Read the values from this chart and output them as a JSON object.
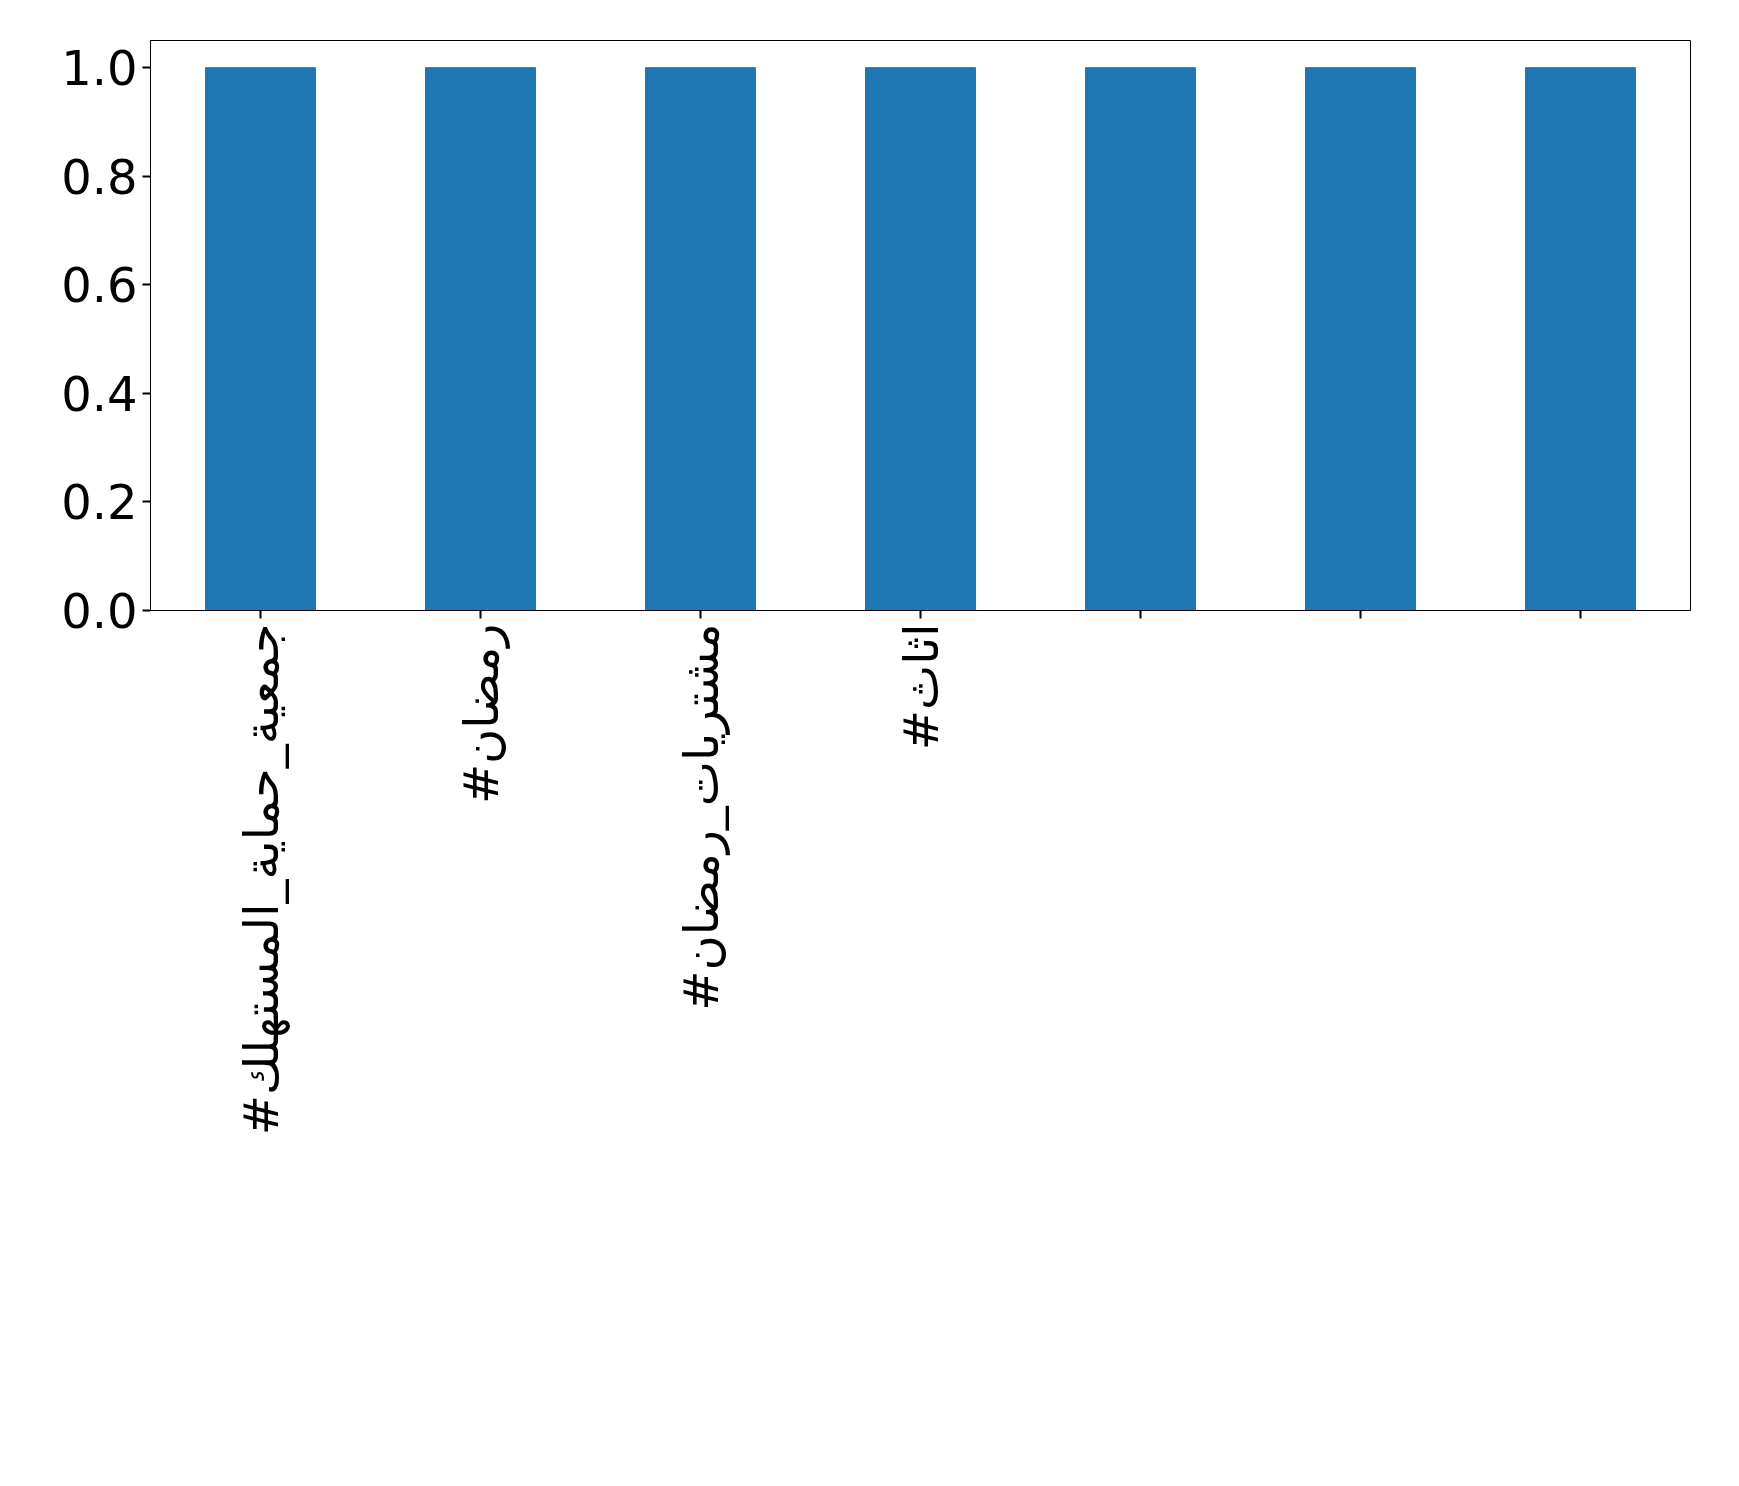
{
  "chart_data": {
    "type": "bar",
    "categories": [
      "#جمعية_حماية_المستهلك",
      "#رمضان",
      "#مشتريات_رمضان",
      "#اثاث",
      null,
      null,
      null
    ],
    "values": [
      1,
      1,
      1,
      1,
      1,
      1,
      1
    ],
    "color": "#1f77b4",
    "ylim": [
      0,
      1.05
    ],
    "yticks": [
      {
        "value": 0,
        "label": "0.0"
      },
      0.2,
      0.4,
      0.6,
      0.8,
      {
        "value": 1,
        "label": "1.0"
      }
    ],
    "grid": false
  }
}
